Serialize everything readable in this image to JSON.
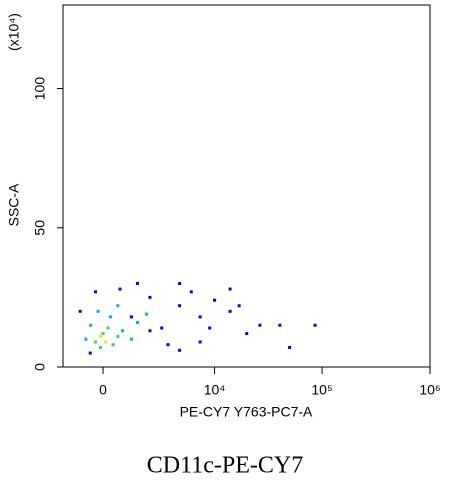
{
  "chart_data": {
    "type": "scatter",
    "title": "CD11c-PE-CY7",
    "x_label": "PE-CY7 Y763-PC7-A",
    "y_label": "SSC-A",
    "y_multiplier_label": "(x10⁴)",
    "xscale": "biexponential",
    "xlim": [
      -1800,
      1000000
    ],
    "xticks": [
      0,
      {
        "value": 10000,
        "label": "10⁴"
      },
      {
        "value": 100000,
        "label": "10⁵"
      },
      {
        "value": 1000000,
        "label": "10⁶"
      }
    ],
    "ylim": [
      0,
      130
    ],
    "yticks": [
      0,
      50,
      100
    ],
    "series": [
      {
        "color": "#0000ff",
        "x": [
          -950,
          690,
          2200,
          4600,
          7300,
          14000,
          26500,
          40600,
          86000,
          14000,
          4600,
          2200,
          7300,
          4600,
          -520,
          1200,
          3000,
          10000,
          20000,
          50000,
          6000,
          1500,
          -300,
          9000,
          17000,
          3500
        ],
        "y": [
          20,
          28,
          25,
          22,
          18,
          20,
          15,
          15,
          15,
          28,
          30,
          13,
          9,
          6,
          5,
          18,
          14,
          24,
          12,
          7,
          27,
          30,
          27,
          14,
          22,
          8
        ]
      },
      {
        "color": "#00aaff",
        "x": [
          -500,
          300,
          800,
          1200,
          -200,
          600,
          1500,
          -700,
          2000
        ],
        "y": [
          15,
          18,
          13,
          10,
          20,
          22,
          16,
          10,
          19
        ]
      },
      {
        "color": "#40d060",
        "x": [
          0,
          -300,
          400,
          200,
          -100,
          600
        ],
        "y": [
          12,
          9,
          8,
          14,
          7,
          11
        ]
      },
      {
        "color": "#e8e800",
        "x": [
          -100,
          100
        ],
        "y": [
          11,
          9
        ]
      }
    ]
  }
}
